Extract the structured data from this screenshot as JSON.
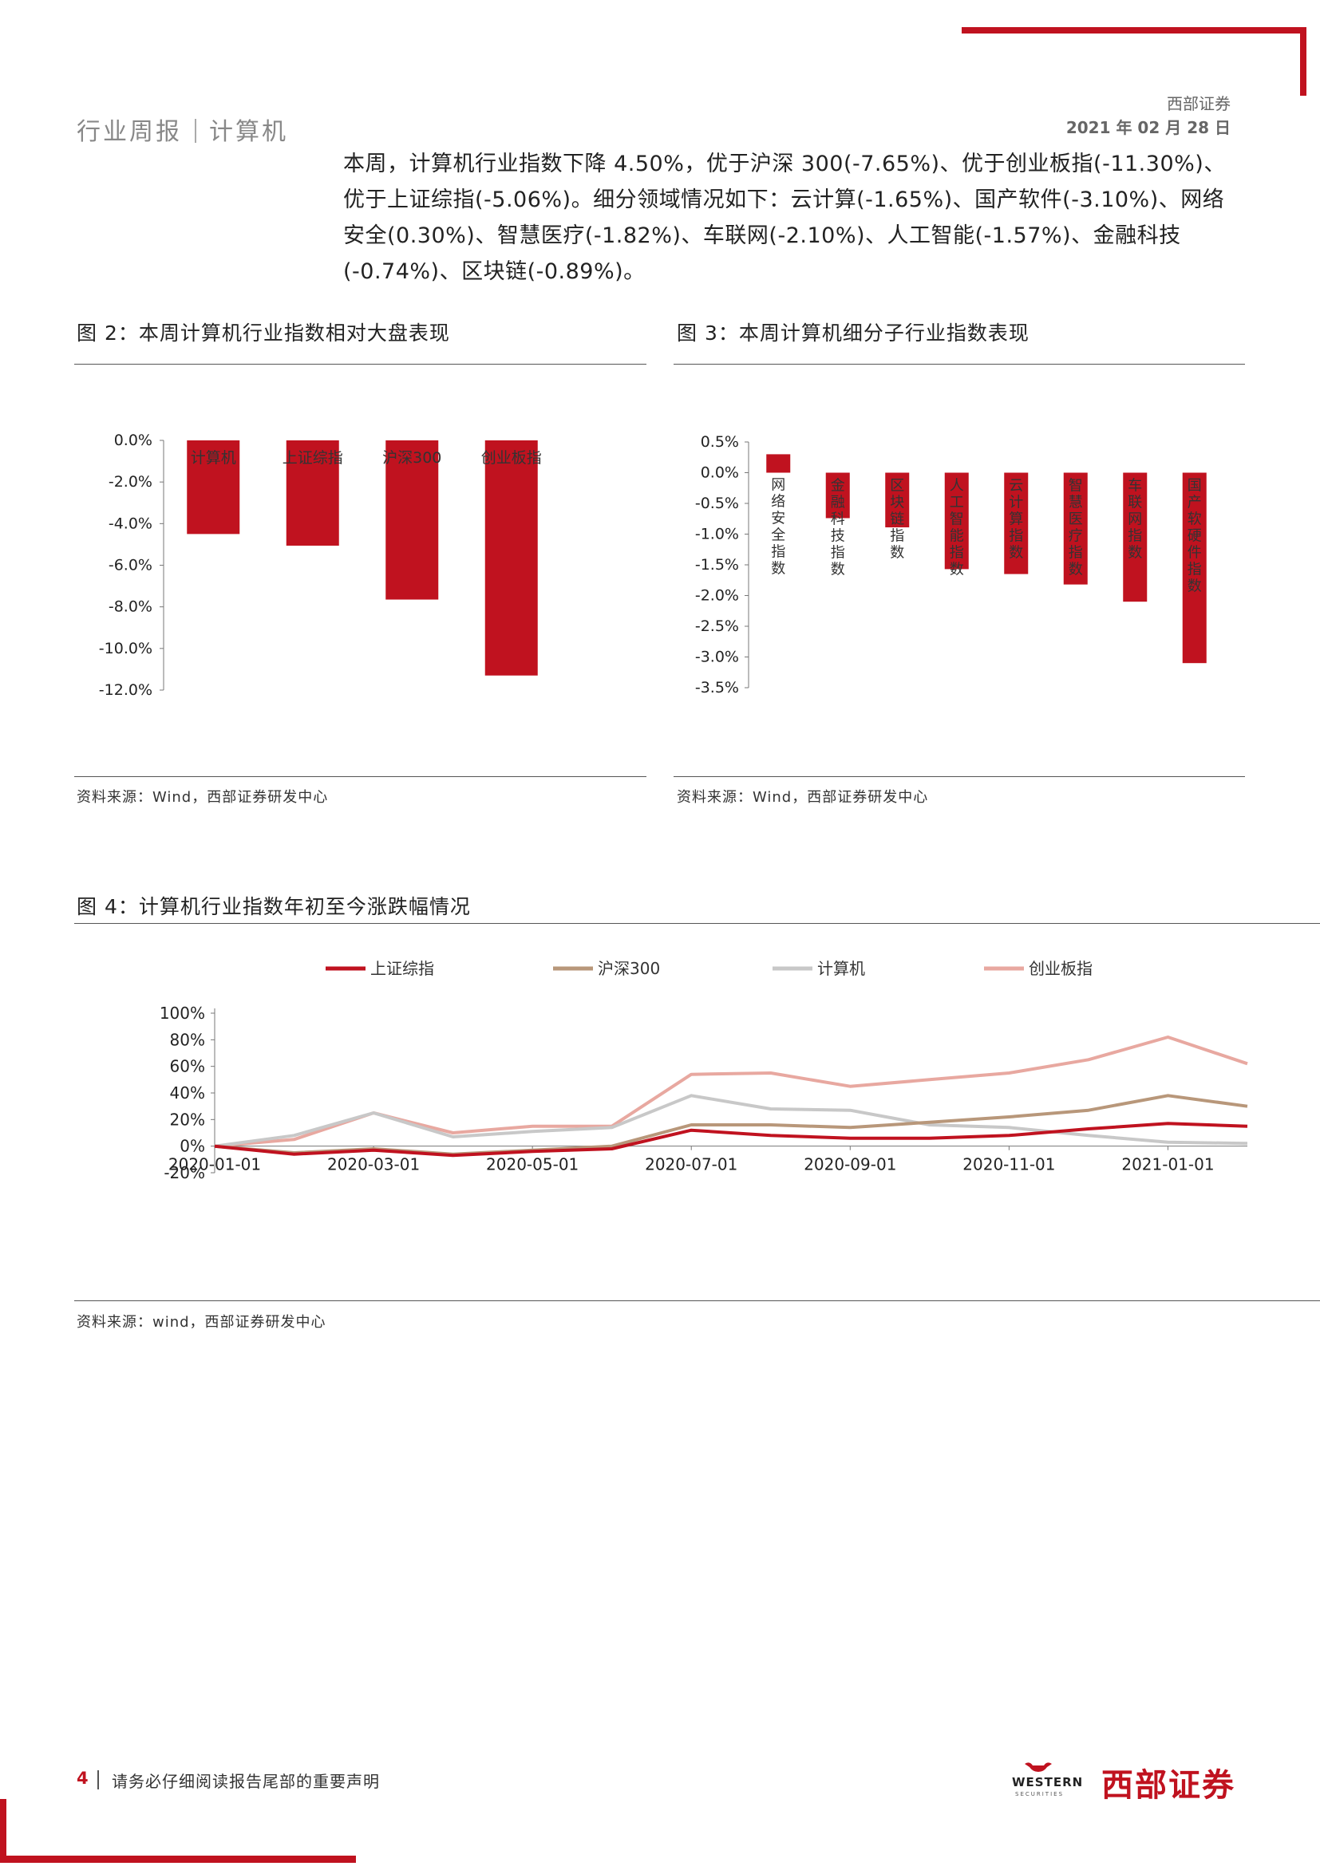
{
  "header": {
    "report_type": "行业周报",
    "industry": "计算机",
    "company": "西部证券",
    "date": "2021 年 02 月 28 日"
  },
  "summary_paragraph": "本周，计算机行业指数下降 4.50%，优于沪深 300(-7.65%)、优于创业板指(-11.30%)、优于上证综指(-5.06%)。细分领域情况如下：云计算(-1.65%)、国产软件(-3.10%)、网络安全(0.30%)、智慧医疗(-1.82%)、车联网(-2.10%)、人工智能(-1.57%)、金融科技(-0.74%)、区块链(-0.89%)。",
  "figures": {
    "fig2": {
      "title": "图 2：本周计算机行业指数相对大盘表现",
      "source": "资料来源：Wind，西部证券研发中心"
    },
    "fig3": {
      "title": "图 3：本周计算机细分子行业指数表现",
      "source": "资料来源：Wind，西部证券研发中心"
    },
    "fig4": {
      "title": "图 4：计算机行业指数年初至今涨跌幅情况",
      "source": "资料来源：wind，西部证券研发中心"
    }
  },
  "chart_data": [
    {
      "id": "fig2",
      "type": "bar",
      "title": "",
      "categories": [
        "计算机",
        "上证综指",
        "沪深300",
        "创业板指"
      ],
      "values": [
        -4.5,
        -5.06,
        -7.65,
        -11.3
      ],
      "yticks": [
        "0.0%",
        "-2.0%",
        "-4.0%",
        "-6.0%",
        "-8.0%",
        "-10.0%",
        "-12.0%"
      ],
      "ylim": [
        -12,
        0
      ],
      "color": "#c0121f"
    },
    {
      "id": "fig3",
      "type": "bar",
      "title": "",
      "categories": [
        "网络安全指数",
        "金融科技指数",
        "区块链指数",
        "人工智能指数",
        "云计算指数",
        "智慧医疗指数",
        "车联网指数",
        "国产软硬件指数"
      ],
      "values": [
        0.3,
        -0.74,
        -0.89,
        -1.57,
        -1.65,
        -1.82,
        -2.1,
        -3.1
      ],
      "yticks": [
        "0.5%",
        "0.0%",
        "-0.5%",
        "-1.0%",
        "-1.5%",
        "-2.0%",
        "-2.5%",
        "-3.0%",
        "-3.5%"
      ],
      "ylim": [
        -3.5,
        0.5
      ],
      "color": "#c0121f"
    },
    {
      "id": "fig4",
      "type": "line",
      "title": "",
      "x": [
        "2020-01",
        "2020-02",
        "2020-03",
        "2020-04",
        "2020-05",
        "2020-06",
        "2020-07",
        "2020-08",
        "2020-09",
        "2020-10",
        "2020-11",
        "2020-12",
        "2021-01",
        "2021-02"
      ],
      "xticks": [
        "2020-01-01",
        "2020-03-01",
        "2020-05-01",
        "2020-07-01",
        "2020-09-01",
        "2020-11-01",
        "2021-01-01"
      ],
      "yticks": [
        "100%",
        "80%",
        "60%",
        "40%",
        "20%",
        "0%",
        "-20%"
      ],
      "ylim": [
        -20,
        100
      ],
      "series": [
        {
          "name": "上证综指",
          "color": "#c0121f",
          "values": [
            0,
            -6,
            -3,
            -7,
            -4,
            -2,
            12,
            8,
            6,
            6,
            8,
            13,
            17,
            15
          ]
        },
        {
          "name": "沪深300",
          "color": "#b8977a",
          "values": [
            0,
            -5,
            -2,
            -6,
            -3,
            0,
            16,
            16,
            14,
            18,
            22,
            27,
            38,
            30
          ]
        },
        {
          "name": "计算机",
          "color": "#c8c8c8",
          "values": [
            0,
            8,
            25,
            7,
            11,
            14,
            38,
            28,
            27,
            16,
            14,
            8,
            3,
            2
          ]
        },
        {
          "name": "创业板指",
          "color": "#e8a8a0",
          "values": [
            0,
            5,
            25,
            10,
            15,
            15,
            54,
            55,
            45,
            50,
            55,
            65,
            82,
            62
          ]
        }
      ]
    }
  ],
  "footer": {
    "page_number": "4",
    "notice": "请务必仔细阅读报告尾部的重要声明",
    "logo_cn": "西部证券",
    "logo_en": "WESTERN",
    "logo_sub": "SECURITIES"
  }
}
